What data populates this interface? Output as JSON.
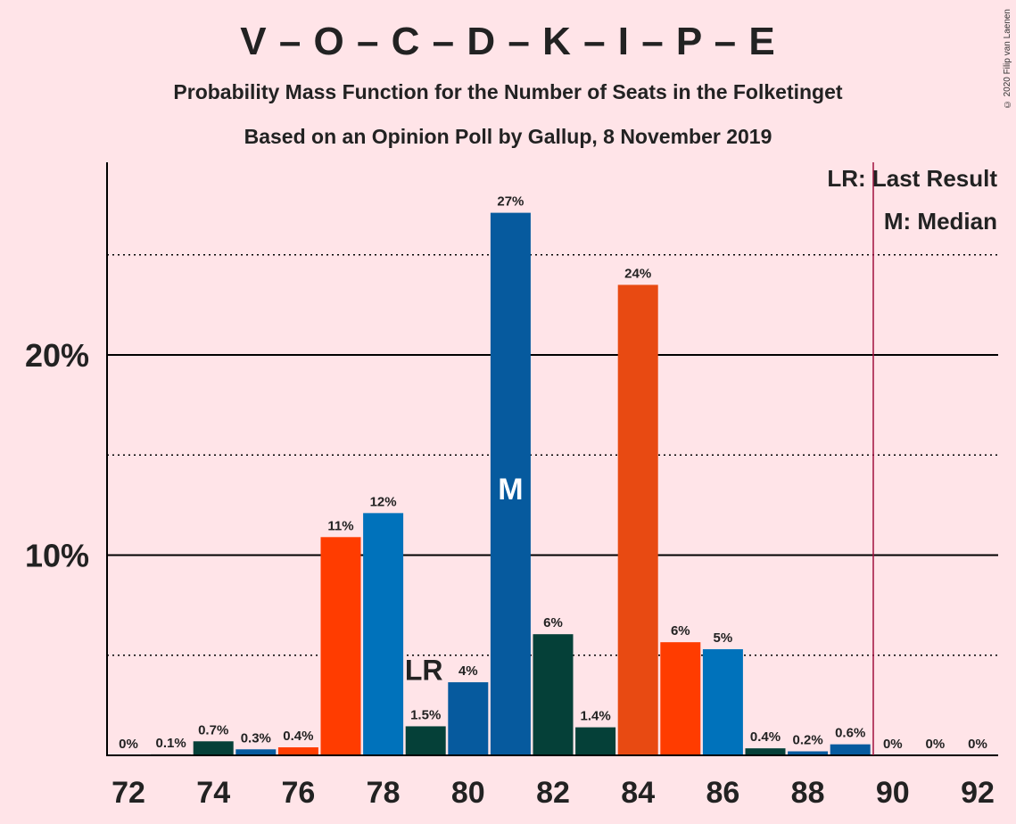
{
  "title": "V – O – C – D – K – I – P – E",
  "subtitle": "Probability Mass Function for the Number of Seats in the Folketinget",
  "subtitle2": "Based on an Opinion Poll by Gallup, 8 November 2019",
  "copyright": "© 2020 Filip van Laenen",
  "legend": {
    "lr": "LR: Last Result",
    "m": "M: Median"
  },
  "markers": {
    "lr_label": "LR",
    "median_label": "M",
    "last_result_seat": 79,
    "median_seat": 81,
    "majority_line_seat": 89.5
  },
  "colors": {
    "background": "#FFE4E8",
    "majority_line": "#A0103E",
    "bar_colors": [
      "#054038",
      "#065A9E",
      "#FF3C00",
      "#0072BB",
      "#E84A12"
    ]
  },
  "chart_data": {
    "type": "bar",
    "x": [
      72,
      73,
      74,
      75,
      76,
      77,
      78,
      79,
      80,
      81,
      82,
      83,
      84,
      85,
      86,
      87,
      88,
      89,
      90,
      91,
      92
    ],
    "values": [
      0,
      0.1,
      0.7,
      0.3,
      0.4,
      11,
      12,
      1.5,
      4,
      27,
      6,
      1.4,
      24,
      6,
      5,
      0.4,
      0.2,
      0.6,
      0,
      0,
      0
    ],
    "plot_values": [
      0,
      0.05,
      0.7,
      0.3,
      0.4,
      10.9,
      12.1,
      1.45,
      3.65,
      27.1,
      6.05,
      1.4,
      23.5,
      5.65,
      5.3,
      0.35,
      0.2,
      0.55,
      0,
      0,
      0
    ],
    "labels": [
      "0%",
      "0.1%",
      "0.7%",
      "0.3%",
      "0.4%",
      "11%",
      "12%",
      "1.5%",
      "4%",
      "27%",
      "6%",
      "1.4%",
      "24%",
      "6%",
      "5%",
      "0.4%",
      "0.2%",
      "0.6%",
      "0%",
      "0%",
      "0%"
    ],
    "color_index": [
      0,
      0,
      0,
      1,
      2,
      2,
      3,
      0,
      1,
      1,
      0,
      0,
      4,
      2,
      3,
      0,
      1,
      1,
      0,
      0,
      0
    ],
    "x_ticks": [
      72,
      74,
      76,
      78,
      80,
      82,
      84,
      86,
      88,
      90,
      92
    ],
    "y_ticks": [
      {
        "value": 10,
        "label": "10%"
      },
      {
        "value": 20,
        "label": "20%"
      }
    ],
    "y_gridlines_dotted": [
      5,
      15,
      25
    ],
    "ylim": [
      0,
      29.5
    ],
    "unit": "%"
  }
}
